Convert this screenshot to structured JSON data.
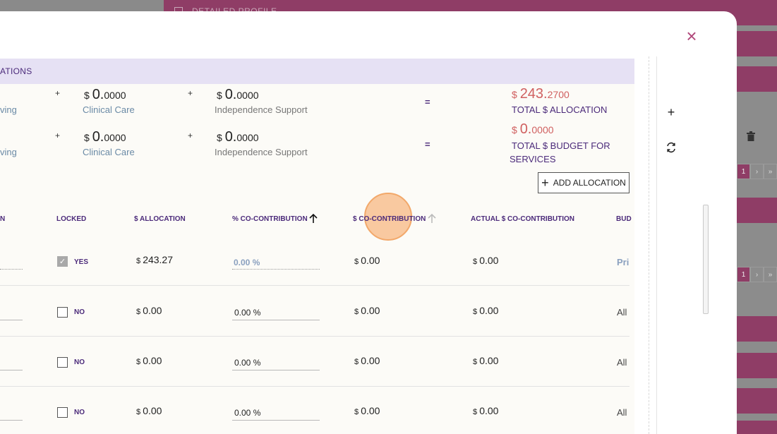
{
  "background": {
    "profile_label": "DETAILED PROFILE",
    "pager": [
      "1",
      "›",
      "»"
    ]
  },
  "modal": {
    "section_title": "ATIONS",
    "summary": {
      "rows": [
        {
          "left_cat": "ving",
          "clinical_currency": "$",
          "clinical_main": "0.",
          "clinical_frac": "0000",
          "clinical_label": "Clinical Care",
          "indep_currency": "$",
          "indep_main": "0.",
          "indep_frac": "0000",
          "indep_label": "Independence Support",
          "total_currency": "$",
          "total_main": "243.",
          "total_frac": "2700",
          "total_label": "TOTAL $ ALLOCATION"
        },
        {
          "left_cat": "ving",
          "clinical_currency": "$",
          "clinical_main": "0.",
          "clinical_frac": "0000",
          "clinical_label": "Clinical Care",
          "indep_currency": "$",
          "indep_main": "0.",
          "indep_frac": "0000",
          "indep_label": "Independence Support",
          "total_currency": "$",
          "total_main": "0.",
          "total_frac": "0000",
          "total_label_1": "TOTAL $ BUDGET FOR",
          "total_label_2": "SERVICES"
        }
      ],
      "plus": "+",
      "equals": "="
    },
    "add_allocation_label": "ADD ALLOCATION",
    "table": {
      "headers": {
        "col0": "N",
        "locked": "LOCKED",
        "allocation": "$ ALLOCATION",
        "pct_co": "% CO-CONTRIBUTION",
        "dollar_co": "$ CO-CONTRIBUTION",
        "actual_co": "ACTUAL $ CO-CONTRIBUTION",
        "budget": "BUD"
      },
      "rows": [
        {
          "locked": "YES",
          "checked": true,
          "allocation": "243.27",
          "pct": "0.00 %",
          "co": "0.00",
          "actual": "0.00",
          "budget": "Pri"
        },
        {
          "locked": "NO",
          "checked": false,
          "allocation": "0.00",
          "pct": "0.00 %",
          "co": "0.00",
          "actual": "0.00",
          "budget": "All"
        },
        {
          "locked": "NO",
          "checked": false,
          "allocation": "0.00",
          "pct": "0.00 %",
          "co": "0.00",
          "actual": "0.00",
          "budget": "All"
        },
        {
          "locked": "NO",
          "checked": false,
          "allocation": "0.00",
          "pct": "0.00 %",
          "co": "0.00",
          "actual": "0.00",
          "budget": "All"
        }
      ],
      "currency": "$"
    },
    "icons": {
      "close": "close-icon",
      "add": "plus-icon",
      "refresh": "refresh-icon",
      "sort_active": "arrow-up-icon",
      "sort_inactive": "arrow-up-icon"
    }
  }
}
